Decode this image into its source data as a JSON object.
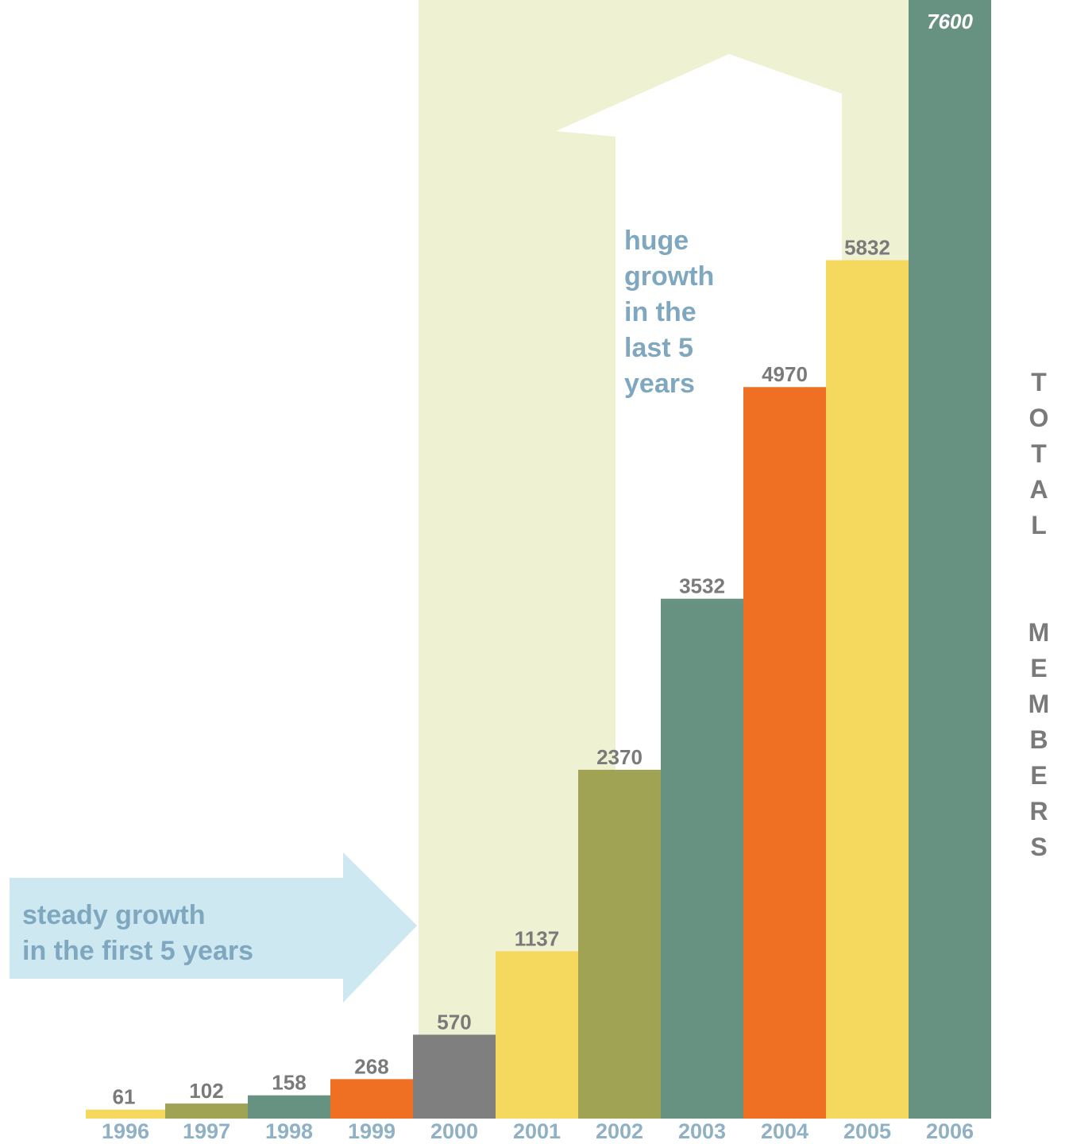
{
  "chart_data": {
    "type": "bar",
    "categories": [
      "1996",
      "1997",
      "1998",
      "1999",
      "2000",
      "2001",
      "2002",
      "2003",
      "2004",
      "2005",
      "2006"
    ],
    "values": [
      61,
      102,
      158,
      268,
      570,
      1137,
      2370,
      3532,
      4970,
      5832,
      7600
    ],
    "data_labels": [
      "61",
      "102",
      "158",
      "268",
      "570",
      "1137",
      "2370",
      "3532",
      "4970",
      "5832",
      "7600"
    ],
    "bar_colors": [
      "#f5d95f",
      "#a0a254",
      "#679282",
      "#f07023",
      "#7f7f7f",
      "#f5d95f",
      "#a0a254",
      "#679282",
      "#f07023",
      "#f5d95f",
      "#679282"
    ],
    "ylabel": "TOTAL MEMBERS",
    "ylabel_letters": [
      "T",
      "O",
      "T",
      "A",
      "L",
      "M",
      "E",
      "M",
      "B",
      "E",
      "R",
      "S"
    ],
    "title": "",
    "xlabel": "",
    "grid": false,
    "legend": "none",
    "annotations": {
      "steady_growth": [
        "steady growth",
        "in the first 5 years"
      ],
      "huge_growth": [
        "huge",
        "growth",
        "in the",
        "last 5",
        "years"
      ]
    },
    "colors": {
      "highlight_band": "#eff1d3",
      "steady_arrow": "#cde8f0",
      "huge_arrow": "#ffffff",
      "annotation_text": "#7fa7bf",
      "year_text": "#8fb1c8",
      "value_text": "#7a7a7a"
    }
  }
}
